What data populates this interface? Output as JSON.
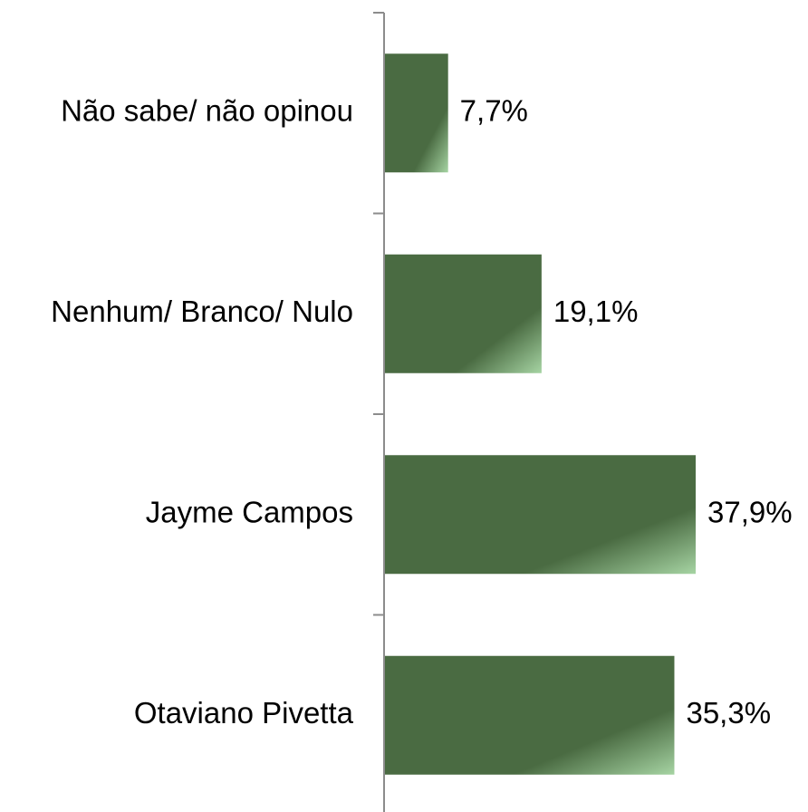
{
  "chart_data": {
    "type": "bar",
    "orientation": "horizontal",
    "title": "",
    "xlabel": "",
    "ylabel": "",
    "categories": [
      "Não sabe/ não opinou",
      "Nenhum/ Branco/ Nulo",
      "Jayme Campos",
      "Otaviano Pivetta"
    ],
    "values": [
      7.7,
      19.1,
      37.9,
      35.3
    ],
    "value_labels": [
      "7,7%",
      "19,1%",
      "37,9%",
      "35,3%"
    ],
    "unit": "%",
    "xlim": [
      0,
      37.9
    ],
    "grid": false,
    "legend": "none",
    "colors": {
      "bar_dark": "#4a6b42",
      "bar_light": "#a6d4a3",
      "axis": "#8c8c8c",
      "text": "#000000"
    }
  }
}
